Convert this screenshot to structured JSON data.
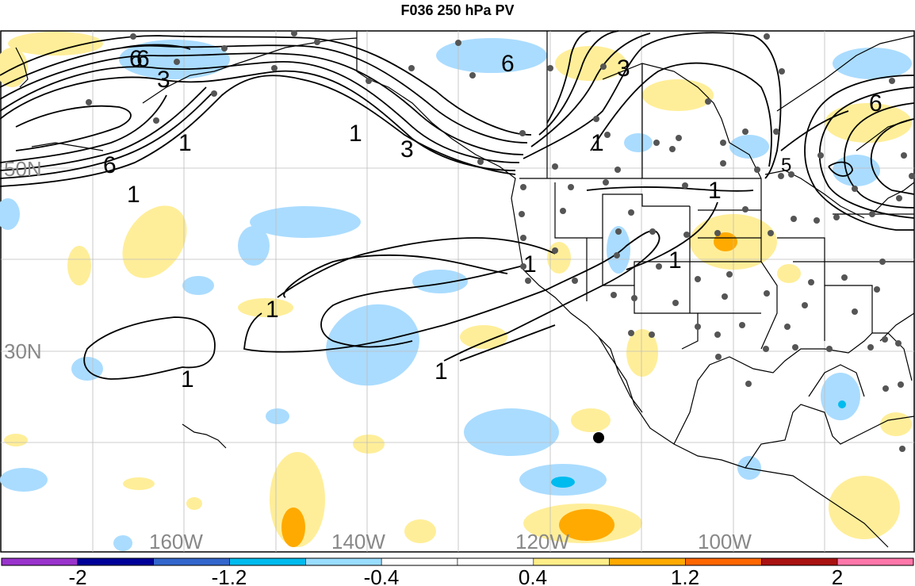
{
  "title": "F036 250 hPa PV",
  "lat_labels": [
    "50N",
    "30N"
  ],
  "lon_labels": [
    "160W",
    "140W",
    "120W",
    "100W"
  ],
  "colorbar": {
    "colors": [
      "#9933cc",
      "#000099",
      "#3366cc",
      "#00bbee",
      "#99ddff",
      "#ffffff",
      "#ffffff",
      "#ffee88",
      "#ffaa00",
      "#ff6600",
      "#aa1111",
      "#ff77aa"
    ],
    "tick_labels": [
      "-2",
      "-1.2",
      "-0.4",
      "0.4",
      "1.2",
      "2"
    ]
  },
  "contour_labels": [
    "6",
    "3",
    "6",
    "1",
    "6",
    "3",
    "1",
    "3",
    "6",
    "1",
    "1",
    "1",
    "1",
    "1",
    "1",
    "1",
    "6",
    "1",
    "5"
  ]
}
